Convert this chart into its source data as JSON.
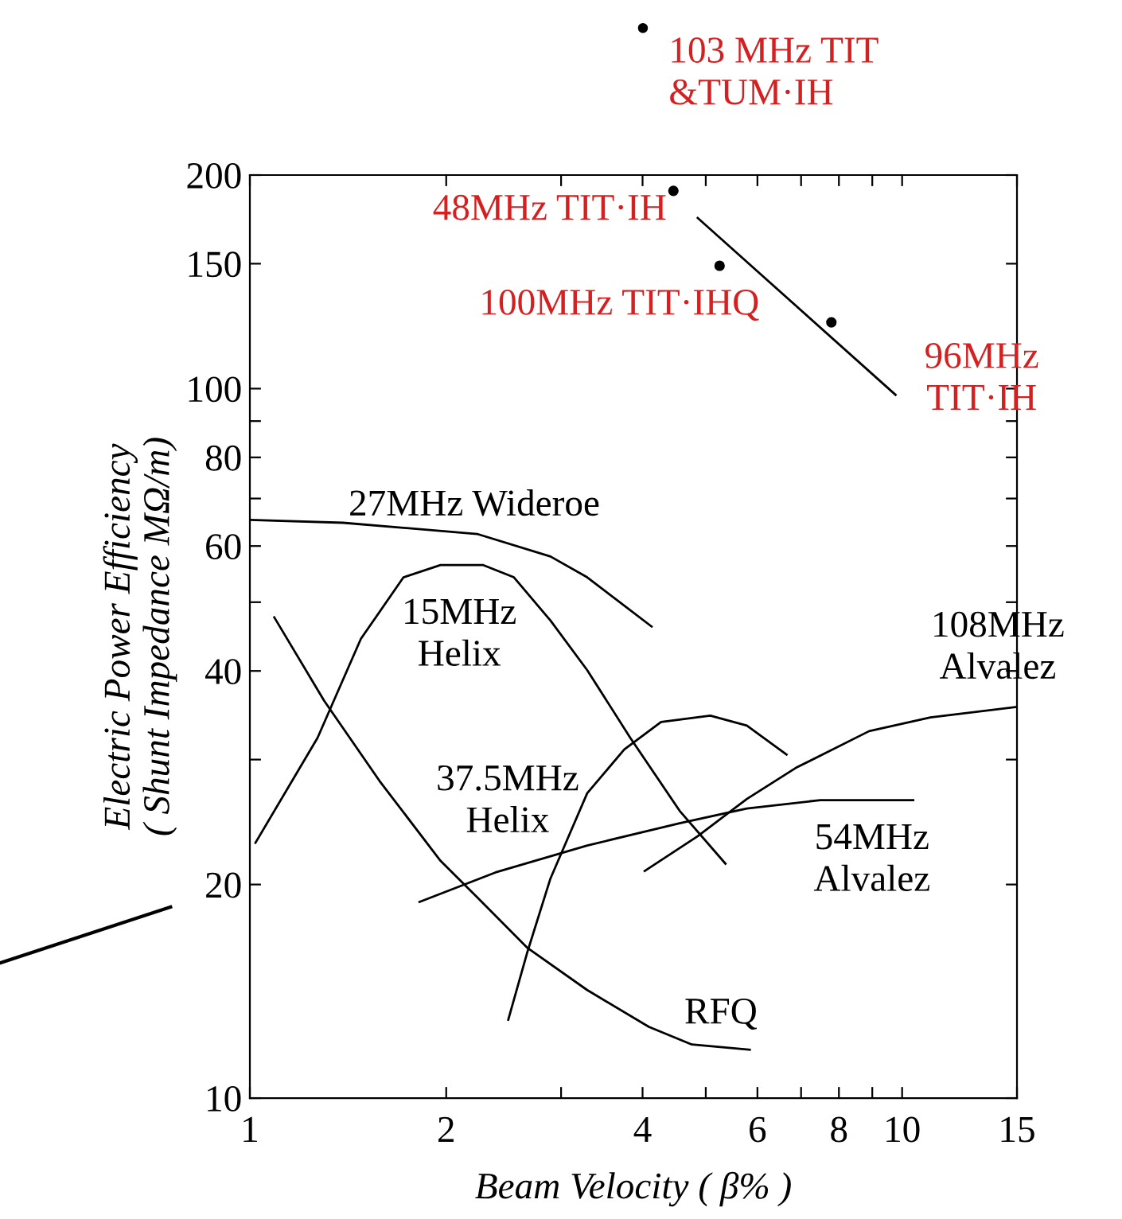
{
  "chart_data": {
    "type": "line",
    "xlabel": "Beam Velocity ( β% )",
    "ylabel": "Electric Power Efficiency\n( Shunt Impedance MΩ/m)",
    "log": "xy",
    "grid": false,
    "xlim": [
      1,
      15
    ],
    "ylim": [
      10,
      200
    ],
    "xticks": [
      1,
      2,
      {
        "value": 3,
        "label": null
      },
      4,
      {
        "value": 5,
        "label": null
      },
      6,
      {
        "value": 7,
        "label": null
      },
      8,
      {
        "value": 9,
        "label": null
      },
      10,
      15
    ],
    "yticks": [
      10,
      20,
      {
        "value": 30,
        "label": null
      },
      40,
      {
        "value": 50,
        "label": null
      },
      60,
      {
        "value": 70,
        "label": null
      },
      80,
      {
        "value": 90,
        "label": null
      },
      100,
      150,
      200
    ],
    "series": [
      {
        "name": "27MHz Wideroe",
        "color": "#000000",
        "x": [
          1.0,
          1.39,
          2.23,
          2.89,
          3.29,
          4.13
        ],
        "values": [
          65.3,
          64.7,
          62.4,
          58.0,
          54.2,
          46.2
        ]
      },
      {
        "name": "15MHz\nHelix",
        "color": "#000000",
        "x": [
          1.02,
          1.27,
          1.48,
          1.72,
          1.96,
          2.28,
          2.54,
          2.89,
          3.29,
          3.83,
          4.56,
          5.36
        ],
        "values": [
          22.9,
          32.2,
          44.4,
          54.2,
          56.4,
          56.4,
          54.2,
          47.1,
          40.1,
          32.2,
          25.4,
          21.4
        ]
      },
      {
        "name": "RFQ",
        "color": "#000000",
        "x": [
          1.09,
          1.3,
          1.58,
          1.96,
          2.23,
          2.66,
          3.29,
          4.09,
          4.76,
          5.84
        ],
        "values": [
          47.6,
          36.3,
          28.0,
          21.6,
          19.2,
          16.3,
          14.2,
          12.6,
          11.9,
          11.7
        ]
      },
      {
        "name": "37.5MHz\nHelix",
        "color": "#000000",
        "x": [
          2.49,
          2.66,
          2.89,
          3.29,
          3.75,
          4.27,
          5.08,
          5.78,
          6.65
        ],
        "values": [
          12.9,
          16.0,
          20.4,
          26.9,
          31.0,
          33.9,
          34.6,
          33.5,
          30.5
        ]
      },
      {
        "name": "54MHz\nAlvalez",
        "color": "#000000",
        "x": [
          1.82,
          2.38,
          3.29,
          4.56,
          5.78,
          7.49,
          10.4
        ],
        "values": [
          18.9,
          20.8,
          22.7,
          24.4,
          25.6,
          26.3,
          26.3
        ]
      },
      {
        "name": "108MHz\nAlvalez",
        "color": "#000000",
        "x": [
          4.03,
          4.86,
          5.78,
          6.87,
          8.9,
          11.05,
          15
        ],
        "values": [
          20.9,
          23.4,
          26.4,
          29.2,
          32.9,
          34.4,
          35.6
        ]
      },
      {
        "color": "#000000",
        "x": [
          4.86,
          9.77
        ],
        "values": [
          174,
          98
        ]
      },
      {
        "type": "scatter",
        "color": "#000000",
        "marker": "circle",
        "x": [
          4.46,
          5.25,
          7.79
        ],
        "values": [
          190,
          149,
          124
        ]
      }
    ],
    "annotations": [
      {
        "text": "48MHz TIT·IH",
        "x": 4.46,
        "y": 190
      },
      {
        "text": "100MHz TIT·IHQ",
        "x": 5.25,
        "y": 149
      },
      {
        "text": "96MHz\nTIT·IH",
        "x": 7.79,
        "y": 124
      },
      "103 MHz TIT\n&TUM·IH"
    ]
  }
}
